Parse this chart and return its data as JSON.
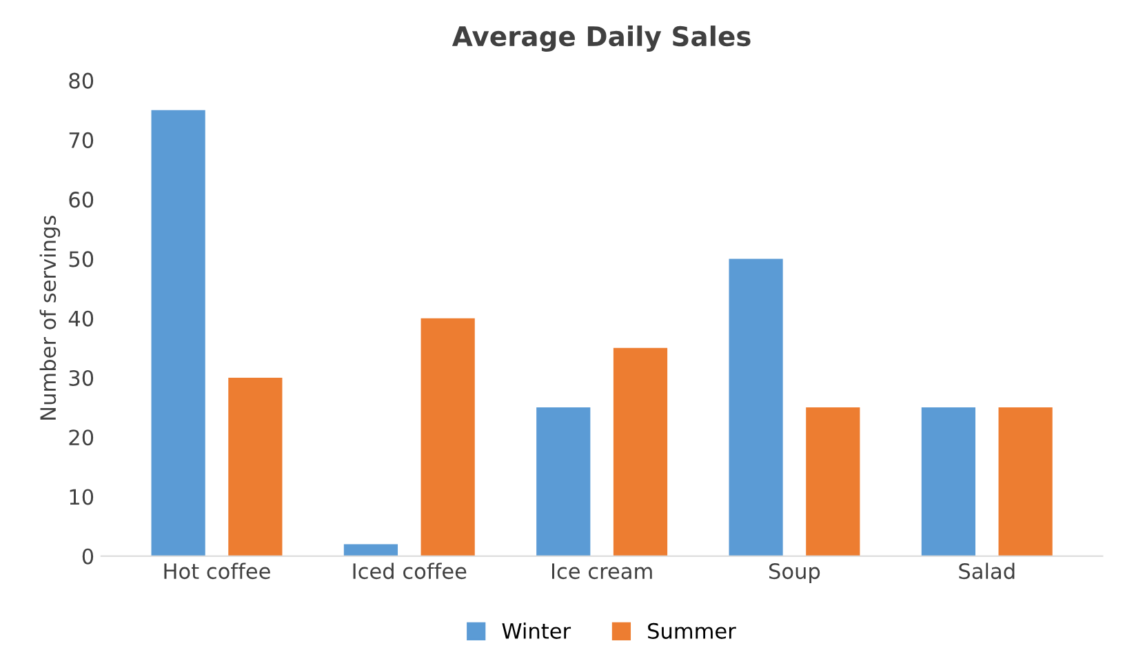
{
  "chart_data": {
    "type": "bar",
    "title": "Average Daily Sales",
    "ylabel": "Number of servings",
    "categories": [
      "Hot coffee",
      "Iced coffee",
      "Ice cream",
      "Soup",
      "Salad"
    ],
    "series": [
      {
        "name": "Winter",
        "color": "#5b9bd5",
        "values": [
          75,
          2,
          25,
          50,
          25
        ]
      },
      {
        "name": "Summer",
        "color": "#ed7d31",
        "values": [
          30,
          40,
          35,
          25,
          25
        ]
      }
    ],
    "ylim": [
      0,
      80
    ],
    "yticks": [
      0,
      10,
      20,
      30,
      40,
      50,
      60,
      70,
      80
    ],
    "grid": false,
    "legend": "bottom"
  }
}
